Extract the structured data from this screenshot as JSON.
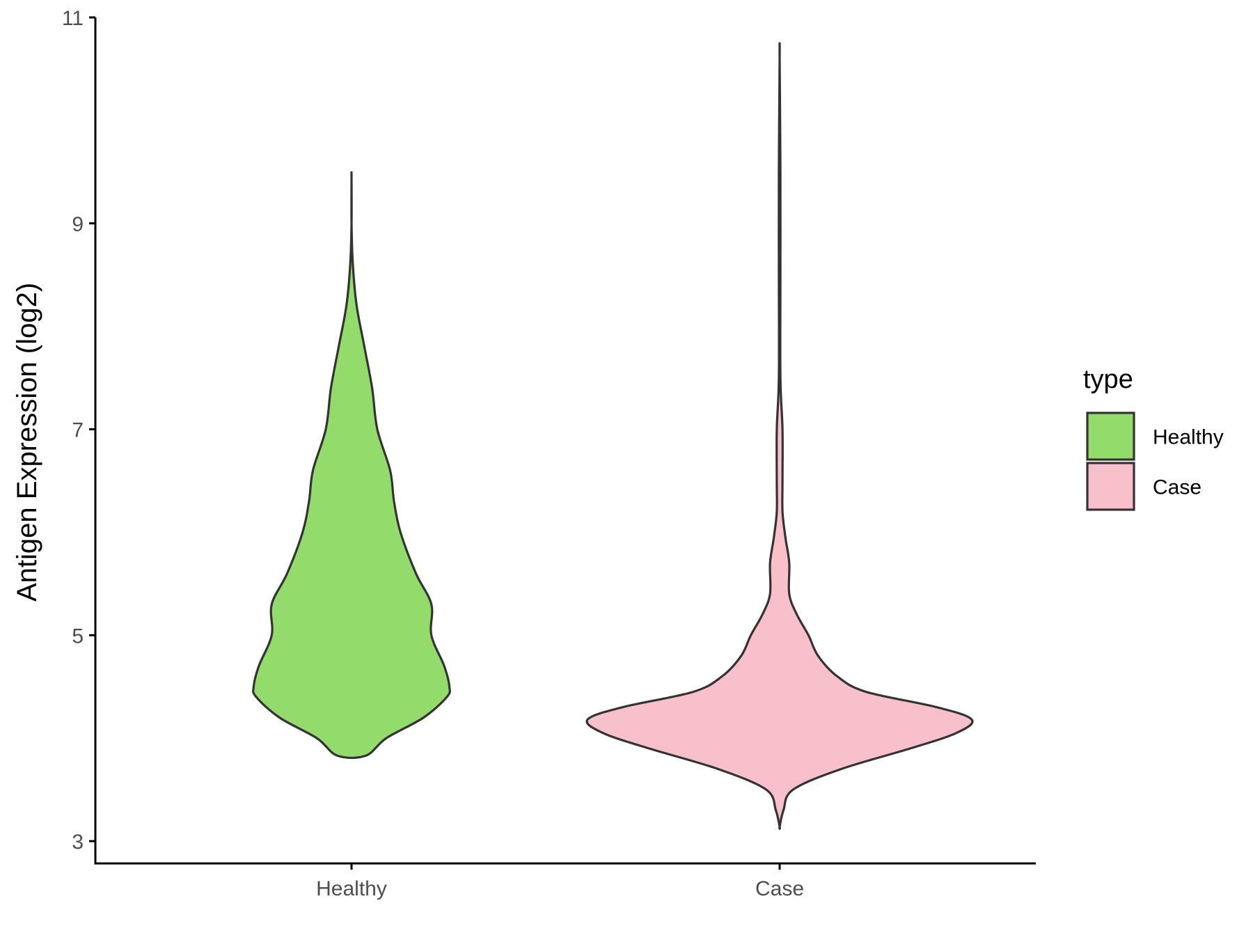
{
  "chart_data": {
    "type": "violin",
    "title": "",
    "xlabel": "",
    "ylabel": "Antigen Expression (log2)",
    "ylim": [
      3,
      11
    ],
    "yticks": [
      "3",
      "5",
      "7",
      "9",
      "11"
    ],
    "categories": [
      "Healthy",
      "Case"
    ],
    "grid": false,
    "legend": {
      "title": "type",
      "position": "right",
      "items": [
        {
          "label": "Healthy",
          "color": "#93db6b"
        },
        {
          "label": "Case",
          "color": "#f8c0cb"
        }
      ]
    },
    "series": [
      {
        "name": "Healthy",
        "color": "#93db6b",
        "min": 3.83,
        "max": 9.44,
        "density_profile": [
          [
            3.83,
            0.11
          ],
          [
            4.0,
            0.27
          ],
          [
            4.2,
            0.56
          ],
          [
            4.4,
            0.74
          ],
          [
            4.5,
            0.76
          ],
          [
            4.7,
            0.72
          ],
          [
            5.0,
            0.62
          ],
          [
            5.3,
            0.62
          ],
          [
            5.6,
            0.5
          ],
          [
            6.0,
            0.38
          ],
          [
            6.3,
            0.33
          ],
          [
            6.6,
            0.3
          ],
          [
            7.0,
            0.2
          ],
          [
            7.4,
            0.16
          ],
          [
            7.8,
            0.1
          ],
          [
            8.2,
            0.04
          ],
          [
            8.6,
            0.01
          ],
          [
            9.0,
            0.0
          ],
          [
            9.44,
            0.0
          ]
        ]
      },
      {
        "name": "Case",
        "color": "#f8c0cb",
        "min": 3.14,
        "max": 10.61,
        "density_profile": [
          [
            3.14,
            0.0
          ],
          [
            3.3,
            0.02
          ],
          [
            3.5,
            0.07
          ],
          [
            3.7,
            0.32
          ],
          [
            3.9,
            0.68
          ],
          [
            4.05,
            0.92
          ],
          [
            4.18,
            1.0
          ],
          [
            4.3,
            0.82
          ],
          [
            4.45,
            0.45
          ],
          [
            4.6,
            0.3
          ],
          [
            4.8,
            0.2
          ],
          [
            5.0,
            0.15
          ],
          [
            5.2,
            0.09
          ],
          [
            5.4,
            0.05
          ],
          [
            5.7,
            0.05
          ],
          [
            5.95,
            0.03
          ],
          [
            6.2,
            0.015
          ],
          [
            6.5,
            0.015
          ],
          [
            7.0,
            0.015
          ],
          [
            7.5,
            0.004
          ],
          [
            8.5,
            0.004
          ],
          [
            9.5,
            0.004
          ],
          [
            10.61,
            0.0
          ]
        ]
      }
    ]
  }
}
